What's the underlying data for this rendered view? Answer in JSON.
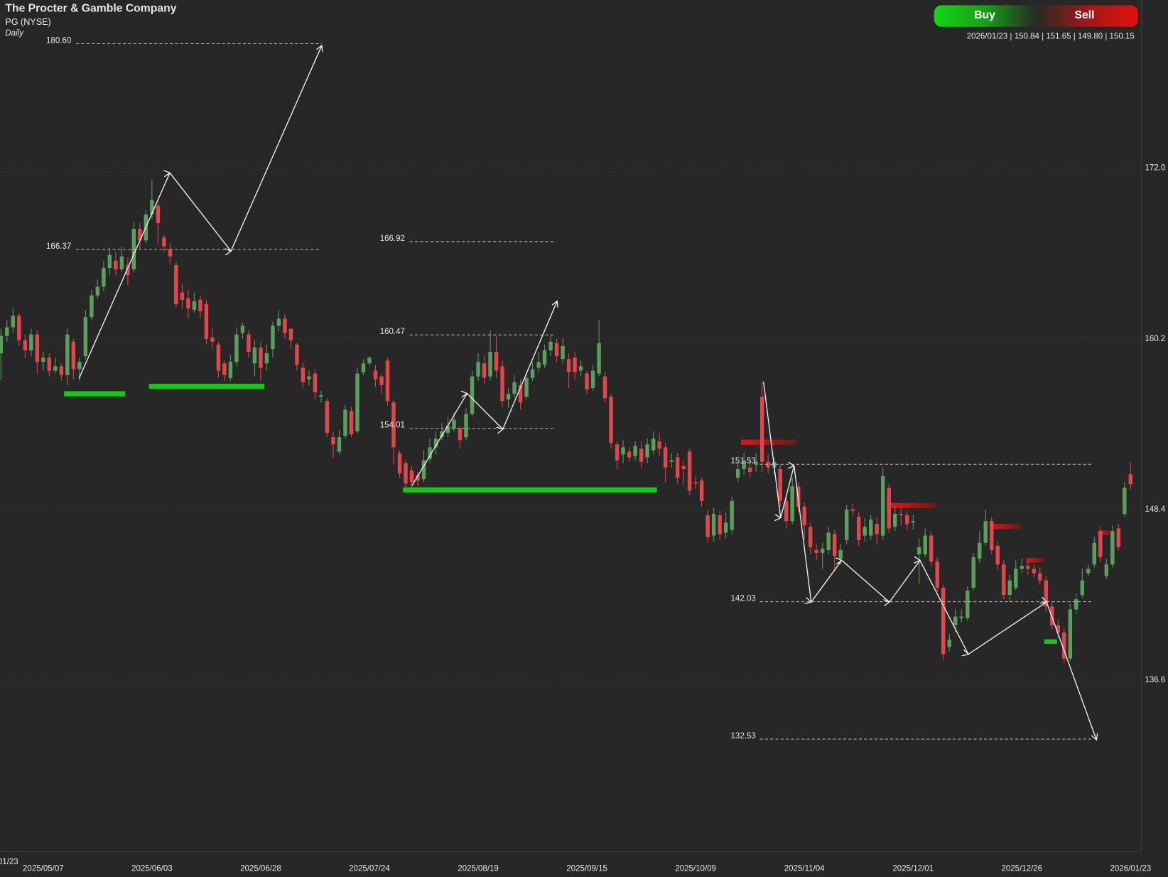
{
  "header": {
    "title": "The Procter & Gamble Company",
    "ticker": "PG (NYSE)",
    "interval": "Daily",
    "buy": "Buy",
    "sell": "Sell",
    "ohlc": "2026/01/23 | 150.84 | 151.65 | 149.80 | 150.15"
  },
  "chart_data": {
    "type": "candlestick",
    "categories": [
      null,
      null,
      null,
      null,
      null,
      null,
      null,
      "2025/05/07",
      null,
      null,
      null,
      null,
      null,
      null,
      null,
      null,
      null,
      null,
      null,
      null,
      null,
      null,
      null,
      null,
      null,
      "2025/06/03",
      null,
      null,
      null,
      null,
      null,
      null,
      null,
      null,
      null,
      null,
      null,
      null,
      null,
      null,
      null,
      null,
      null,
      "2025/06/28",
      null,
      null,
      null,
      null,
      null,
      null,
      null,
      null,
      null,
      null,
      null,
      null,
      null,
      null,
      null,
      null,
      null,
      "2025/07/24",
      null,
      null,
      null,
      null,
      null,
      null,
      null,
      null,
      null,
      null,
      null,
      null,
      null,
      null,
      null,
      null,
      null,
      "2025/08/19",
      null,
      null,
      null,
      null,
      null,
      null,
      null,
      null,
      null,
      null,
      null,
      null,
      null,
      null,
      null,
      null,
      null,
      "2025/09/15",
      null,
      null,
      null,
      null,
      null,
      null,
      null,
      null,
      null,
      null,
      null,
      null,
      null,
      null,
      null,
      null,
      null,
      "2025/10/09",
      null,
      null,
      null,
      null,
      null,
      null,
      null,
      null,
      null,
      null,
      null,
      null,
      null,
      null,
      null,
      null,
      null,
      "2025/11/04",
      null,
      null,
      null,
      null,
      null,
      null,
      null,
      null,
      null,
      null,
      null,
      null,
      null,
      null,
      null,
      null,
      null,
      "2025/12/01",
      null,
      null,
      null,
      null,
      null,
      null,
      null,
      null,
      null,
      null,
      null,
      null,
      null,
      null,
      null,
      null,
      null,
      "2025/12/26",
      null,
      null,
      null,
      null,
      null,
      null,
      null,
      null,
      null,
      null,
      null,
      null,
      null,
      null,
      null,
      null,
      null,
      "2026/01/23"
    ],
    "open": [
      159.2,
      160.4,
      161.0,
      161.8,
      160.1,
      159.4,
      160.5,
      158.6,
      158.9,
      158.0,
      158.3,
      157.7,
      160.0,
      158.1,
      159.0,
      161.7,
      163.2,
      163.8,
      165.1,
      165.6,
      165.0,
      165.3,
      165.0,
      167.8,
      167.0,
      168.8,
      169.4,
      167.2,
      166.4,
      165.3,
      163.4,
      163.0,
      162.2,
      162.9,
      162.6,
      160.3,
      159.8,
      158.5,
      157.5,
      158.6,
      160.6,
      160.5,
      158.5,
      159.6,
      158.5,
      159.5,
      161.1,
      161.6,
      160.9,
      159.8,
      158.2,
      157.4,
      157.8,
      156.2,
      155.9,
      153.4,
      152.4,
      153.5,
      155.2,
      153.8,
      157.9,
      158.5,
      158.0,
      157.6,
      158.7,
      155.8,
      152.3,
      151.6,
      151.1,
      150.8,
      150.5,
      151.9,
      152.7,
      153.4,
      153.7,
      154.0,
      154.0,
      153.4,
      155.0,
      157.6,
      158.5,
      157.6,
      159.3,
      158.3,
      156.0,
      156.4,
      157.0,
      156.2,
      157.5,
      158.2,
      158.4,
      159.4,
      159.9,
      158.8,
      158.8,
      158.9,
      158.0,
      157.8,
      156.8,
      157.8,
      157.6,
      156.2,
      152.9,
      152.2,
      152.4,
      152.1,
      152.6,
      152.0,
      152.5,
      153.1,
      152.7,
      151.7,
      152.0,
      151.4,
      152.4,
      150.3,
      150.4,
      148.0,
      146.6,
      148.0,
      146.8,
      147.0,
      150.6,
      151.2,
      151.3,
      151.5,
      156.2,
      151.7,
      151.3,
      151.2,
      149.0,
      147.6,
      150.0,
      148.6,
      147.2,
      145.6,
      145.4,
      145.6,
      146.7,
      145.0,
      146.3,
      148.4,
      147.9,
      146.6,
      146.6,
      147.4,
      146.6,
      149.9,
      147.2,
      148.1,
      148.0,
      147.5,
      145.3,
      145.3,
      146.6,
      144.8,
      143.0,
      138.9,
      140.4,
      140.9,
      140.9,
      143.0,
      145.0,
      146.1,
      147.6,
      145.9,
      144.6,
      142.5,
      143.0,
      144.3,
      144.5,
      144.3,
      144.0,
      143.5,
      141.7,
      140.4,
      139.9,
      138.1,
      141.5,
      142.5,
      144.0,
      144.6,
      146.9,
      143.8,
      144.6,
      147.1,
      148.1,
      150.84
    ],
    "high": [
      160.9,
      161.5,
      162.3,
      162.0,
      160.5,
      160.9,
      160.8,
      159.3,
      159.2,
      158.9,
      158.5,
      160.9,
      160.2,
      158.9,
      162.2,
      163.6,
      164.3,
      165.6,
      166.5,
      166.2,
      166.6,
      165.8,
      168.3,
      168.2,
      169.1,
      171.2,
      169.6,
      167.4,
      166.8,
      165.5,
      164.0,
      163.6,
      163.4,
      163.2,
      162.9,
      161.0,
      160.0,
      158.7,
      159.1,
      161.0,
      161.3,
      160.8,
      160.1,
      160.0,
      159.8,
      161.4,
      162.2,
      161.9,
      160.9,
      159.9,
      158.6,
      158.0,
      158.1,
      156.6,
      156.1,
      153.8,
      153.9,
      155.6,
      155.5,
      158.2,
      158.8,
      159.0,
      158.4,
      157.8,
      158.9,
      156.0,
      152.5,
      151.8,
      151.4,
      151.0,
      152.5,
      153.3,
      153.8,
      154.4,
      154.8,
      155.1,
      154.2,
      155.4,
      158.0,
      159.2,
      159.0,
      160.8,
      160.4,
      158.7,
      156.8,
      157.7,
      157.4,
      157.9,
      158.6,
      159.3,
      159.8,
      160.4,
      160.2,
      160.2,
      159.2,
      159.3,
      158.7,
      158.0,
      158.4,
      161.5,
      157.9,
      156.4,
      153.1,
      153.2,
      152.7,
      153.1,
      153.1,
      153.3,
      153.8,
      153.7,
      153.0,
      152.3,
      152.3,
      151.8,
      152.6,
      150.7,
      150.6,
      148.4,
      148.5,
      148.3,
      148.2,
      149.3,
      151.6,
      152.3,
      152.0,
      152.3,
      157.2,
      152.2,
      152.0,
      151.5,
      149.4,
      150.6,
      150.3,
      148.9,
      147.5,
      146.0,
      146.1,
      147.2,
      147.0,
      146.0,
      148.7,
      148.8,
      148.2,
      147.8,
      148.0,
      147.9,
      151.3,
      150.2,
      148.6,
      148.5,
      148.3,
      148.0,
      146.4,
      147.1,
      146.9,
      145.1,
      143.2,
      139.8,
      141.5,
      141.5,
      143.1,
      145.4,
      146.9,
      148.4,
      147.9,
      146.2,
      144.9,
      143.9,
      144.9,
      145.0,
      144.8,
      144.6,
      144.4,
      143.8,
      142.0,
      140.8,
      140.2,
      141.9,
      142.6,
      144.3,
      144.6,
      146.5,
      147.2,
      145.0,
      147.3,
      147.4,
      150.3,
      151.65
    ],
    "low": [
      157.4,
      160.0,
      160.6,
      159.7,
      158.9,
      159.0,
      157.8,
      158.0,
      157.6,
      157.8,
      157.3,
      157.0,
      157.4,
      157.3,
      158.8,
      161.5,
      163.0,
      163.5,
      164.6,
      164.6,
      164.8,
      163.9,
      164.8,
      166.4,
      166.8,
      168.5,
      166.7,
      166.2,
      165.3,
      162.4,
      162.3,
      161.6,
      162.0,
      161.6,
      159.8,
      159.5,
      157.5,
      157.3,
      157.3,
      158.3,
      160.2,
      158.9,
      157.6,
      157.3,
      158.0,
      158.9,
      160.7,
      160.2,
      159.5,
      158.0,
      156.8,
      157.0,
      156.0,
      155.8,
      153.4,
      152.0,
      152.2,
      153.3,
      153.4,
      153.7,
      157.7,
      158.3,
      156.9,
      156.4,
      155.6,
      151.5,
      150.6,
      149.9,
      149.9,
      150.0,
      150.3,
      151.6,
      152.2,
      153.2,
      153.4,
      153.8,
      152.6,
      153.2,
      154.8,
      157.3,
      157.1,
      157.3,
      157.5,
      155.5,
      155.4,
      156.1,
      155.3,
      156.0,
      157.3,
      157.9,
      158.2,
      159.0,
      158.6,
      158.5,
      156.8,
      157.4,
      157.6,
      156.4,
      156.6,
      157.6,
      155.8,
      152.6,
      151.2,
      151.6,
      151.7,
      151.8,
      151.3,
      151.6,
      152.2,
      152.1,
      150.3,
      151.3,
      150.2,
      150.1,
      149.4,
      149.8,
      148.6,
      146.1,
      146.2,
      146.3,
      146.4,
      146.7,
      150.3,
      150.8,
      150.6,
      151.0,
      151.0,
      150.9,
      150.8,
      148.6,
      147.1,
      147.4,
      148.2,
      146.3,
      145.3,
      144.9,
      144.3,
      145.3,
      144.1,
      144.6,
      146.0,
      147.9,
      145.9,
      146.2,
      146.3,
      146.0,
      146.3,
      146.8,
      146.9,
      147.3,
      147.0,
      147.0,
      143.3,
      145.1,
      144.5,
      142.7,
      138.0,
      138.6,
      139.9,
      140.6,
      140.7,
      142.8,
      144.7,
      145.9,
      145.3,
      144.2,
      142.2,
      142.0,
      142.8,
      144.0,
      143.9,
      143.7,
      143.2,
      141.3,
      140.1,
      139.5,
      137.8,
      137.9,
      141.2,
      142.3,
      143.8,
      144.4,
      144.8,
      143.6,
      144.4,
      145.6,
      147.9,
      149.8
    ],
    "close": [
      160.4,
      161.0,
      161.8,
      160.1,
      159.4,
      160.5,
      158.6,
      158.9,
      158.0,
      158.3,
      157.7,
      160.5,
      158.1,
      158.6,
      161.7,
      163.2,
      163.8,
      165.1,
      166.0,
      165.0,
      165.9,
      164.6,
      167.8,
      167.0,
      168.8,
      169.8,
      168.2,
      166.6,
      165.9,
      162.6,
      162.9,
      162.3,
      162.8,
      162.1,
      160.2,
      160.0,
      158.0,
      157.7,
      158.6,
      160.5,
      161.1,
      159.3,
      159.6,
      158.2,
      159.2,
      161.1,
      161.6,
      160.6,
      160.1,
      158.4,
      157.2,
      157.6,
      156.5,
      156.3,
      153.7,
      152.9,
      153.4,
      155.3,
      153.6,
      157.8,
      158.5,
      158.9,
      157.4,
      157.0,
      155.9,
      152.7,
      150.9,
      150.2,
      150.3,
      150.4,
      151.8,
      152.7,
      153.3,
      153.8,
      154.2,
      154.6,
      153.2,
      155.0,
      157.6,
      158.6,
      157.5,
      159.3,
      158.0,
      155.9,
      156.4,
      157.2,
      155.8,
      157.5,
      158.1,
      158.6,
      159.4,
      160.0,
      159.0,
      159.7,
      157.9,
      157.9,
      158.3,
      156.7,
      158.0,
      159.9,
      156.1,
      153.0,
      151.8,
      152.7,
      152.0,
      152.8,
      151.7,
      152.9,
      153.3,
      152.6,
      151.3,
      151.8,
      150.6,
      151.2,
      149.7,
      150.2,
      149.0,
      146.5,
      148.1,
      146.7,
      147.5,
      149.0,
      151.2,
      151.8,
      151.0,
      151.7,
      151.7,
      151.3,
      151.7,
      149.0,
      147.6,
      150.0,
      148.6,
      147.3,
      145.8,
      145.4,
      145.7,
      146.8,
      145.2,
      145.6,
      148.4,
      148.3,
      146.3,
      147.2,
      147.7,
      146.7,
      150.7,
      147.1,
      148.1,
      148.0,
      147.4,
      147.6,
      145.8,
      146.6,
      144.8,
      143.0,
      138.4,
      139.4,
      141.0,
      141.0,
      142.8,
      145.1,
      146.1,
      147.6,
      145.6,
      144.6,
      142.5,
      143.5,
      144.3,
      144.5,
      144.3,
      144.0,
      143.5,
      141.7,
      140.4,
      139.9,
      138.1,
      141.5,
      142.2,
      143.5,
      144.3,
      146.1,
      145.1,
      144.6,
      146.9,
      145.8,
      149.9,
      150.15
    ],
    "up_color": "#5c9e5e",
    "down_color": "#e0474c",
    "ylim": [
      124.75,
      183.62
    ],
    "yticks": [
      {
        "value": 172,
        "label": "172.0"
      },
      160.2,
      148.4,
      136.6
    ],
    "grid": true,
    "levels": [
      {
        "value": 180.6,
        "label": "180.60"
      },
      166.37,
      166.92,
      160.47,
      154.01,
      151.53,
      142.03,
      132.53
    ],
    "partial_x_label": "01/23"
  }
}
